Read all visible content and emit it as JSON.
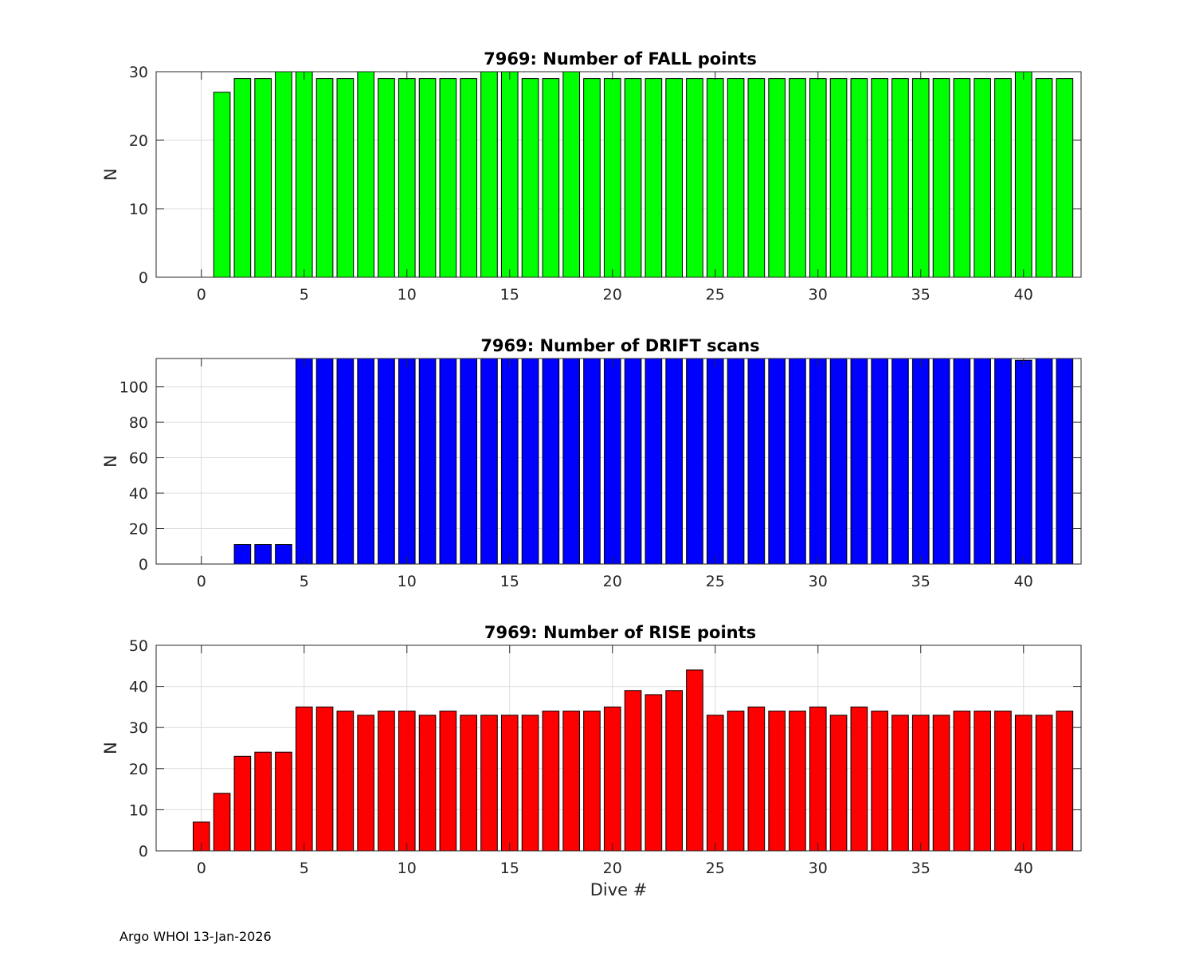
{
  "footer_text": "Argo WHOI 13-Jan-2026",
  "chart_data": [
    {
      "type": "bar",
      "title": "7969: Number of FALL points",
      "xlabel": "",
      "ylabel": "N",
      "color": "#00ff00",
      "xlim": [
        -2.2,
        42.8
      ],
      "ylim": [
        0,
        30
      ],
      "xticks": [
        0,
        5,
        10,
        15,
        20,
        25,
        30,
        35,
        40
      ],
      "yticks": [
        0,
        10,
        20,
        30
      ],
      "grid": true,
      "x": [
        1,
        2,
        3,
        4,
        5,
        6,
        7,
        8,
        9,
        10,
        11,
        12,
        13,
        14,
        15,
        16,
        17,
        18,
        19,
        20,
        21,
        22,
        23,
        24,
        25,
        26,
        27,
        28,
        29,
        30,
        31,
        32,
        33,
        34,
        35,
        36,
        37,
        38,
        39,
        40,
        41,
        42
      ],
      "values": [
        27,
        29,
        29,
        30,
        30,
        29,
        29,
        30,
        29,
        29,
        29,
        29,
        29,
        30,
        30,
        29,
        29,
        30,
        29,
        29,
        29,
        29,
        29,
        29,
        29,
        29,
        29,
        29,
        29,
        29,
        29,
        29,
        29,
        29,
        29,
        29,
        29,
        29,
        29,
        30,
        29,
        29
      ]
    },
    {
      "type": "bar",
      "title": "7969: Number of DRIFT scans",
      "xlabel": "",
      "ylabel": "N",
      "color": "#0000ff",
      "xlim": [
        -2.2,
        42.8
      ],
      "ylim": [
        0,
        116
      ],
      "xticks": [
        0,
        5,
        10,
        15,
        20,
        25,
        30,
        35,
        40
      ],
      "yticks": [
        0,
        20,
        40,
        60,
        80,
        100
      ],
      "grid": true,
      "x": [
        -1,
        0,
        1,
        2,
        3,
        4,
        5,
        6,
        7,
        8,
        9,
        10,
        11,
        12,
        13,
        14,
        15,
        16,
        17,
        18,
        19,
        20,
        21,
        22,
        23,
        24,
        25,
        26,
        27,
        28,
        29,
        30,
        31,
        32,
        33,
        34,
        35,
        36,
        37,
        38,
        39,
        40,
        41,
        42
      ],
      "values": [
        0,
        0,
        0,
        11,
        11,
        11,
        116,
        116,
        116,
        116,
        116,
        116,
        116,
        116,
        116,
        116,
        116,
        116,
        116,
        116,
        116,
        116,
        116,
        116,
        116,
        116,
        116,
        116,
        116,
        116,
        116,
        116,
        116,
        116,
        116,
        116,
        116,
        116,
        116,
        116,
        116,
        115,
        116,
        116
      ]
    },
    {
      "type": "bar",
      "title": "7969: Number of RISE points",
      "xlabel": "Dive #",
      "ylabel": "N",
      "color": "#ff0000",
      "xlim": [
        -2.2,
        42.8
      ],
      "ylim": [
        0,
        50
      ],
      "xticks": [
        0,
        5,
        10,
        15,
        20,
        25,
        30,
        35,
        40
      ],
      "yticks": [
        0,
        10,
        20,
        30,
        40,
        50
      ],
      "grid": true,
      "x": [
        0,
        1,
        2,
        3,
        4,
        5,
        6,
        7,
        8,
        9,
        10,
        11,
        12,
        13,
        14,
        15,
        16,
        17,
        18,
        19,
        20,
        21,
        22,
        23,
        24,
        25,
        26,
        27,
        28,
        29,
        30,
        31,
        32,
        33,
        34,
        35,
        36,
        37,
        38,
        39,
        40,
        41,
        42
      ],
      "values": [
        7,
        14,
        23,
        24,
        24,
        35,
        35,
        34,
        33,
        34,
        34,
        33,
        34,
        33,
        33,
        33,
        33,
        34,
        34,
        34,
        35,
        39,
        38,
        39,
        44,
        33,
        34,
        35,
        34,
        34,
        35,
        33,
        35,
        34,
        33,
        33,
        33,
        34,
        34,
        34,
        33,
        33,
        34
      ]
    }
  ]
}
